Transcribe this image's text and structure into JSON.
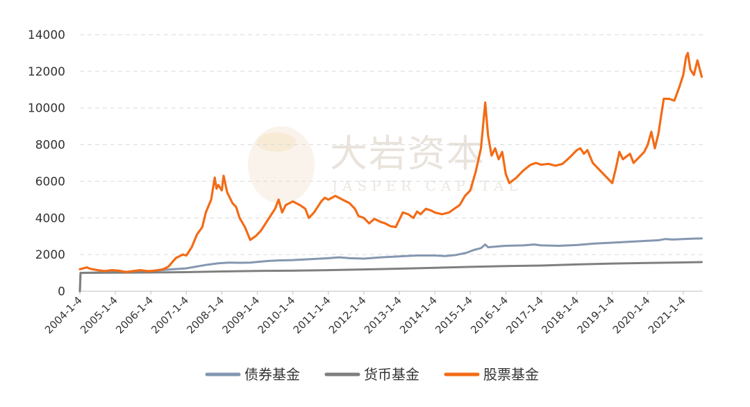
{
  "chart_data": {
    "type": "line",
    "title": "",
    "xlabel": "",
    "ylabel": "",
    "ylim": [
      0,
      14000
    ],
    "yticks": [
      0,
      2000,
      4000,
      6000,
      8000,
      10000,
      12000,
      14000
    ],
    "xticks": [
      "2004-1-4",
      "2005-1-4",
      "2006-1-4",
      "2007-1-4",
      "2008-1-4",
      "2009-1-4",
      "2010-1-4",
      "2011-1-4",
      "2012-1-4",
      "2013-1-4",
      "2014-1-4",
      "2015-1-4",
      "2016-1-4",
      "2017-1-4",
      "2018-1-4",
      "2019-1-4",
      "2020-1-4",
      "2021-1-4"
    ],
    "x_range": [
      2004.0,
      2021.55
    ],
    "grid": "horizontal dashed",
    "legend": "bottom",
    "watermark": {
      "cn": "大岩资本",
      "en": "JASPER CAPITAL"
    },
    "series": [
      {
        "name": "债券基金",
        "color": "#8497b0",
        "points": [
          [
            2004.0,
            0
          ],
          [
            2004.02,
            1000
          ],
          [
            2004.5,
            1020
          ],
          [
            2005.0,
            1050
          ],
          [
            2005.5,
            1070
          ],
          [
            2006.0,
            1100
          ],
          [
            2006.5,
            1180
          ],
          [
            2007.0,
            1250
          ],
          [
            2007.3,
            1350
          ],
          [
            2007.6,
            1450
          ],
          [
            2007.9,
            1520
          ],
          [
            2008.2,
            1560
          ],
          [
            2008.5,
            1550
          ],
          [
            2008.8,
            1560
          ],
          [
            2009.0,
            1600
          ],
          [
            2009.3,
            1650
          ],
          [
            2009.6,
            1680
          ],
          [
            2010.0,
            1700
          ],
          [
            2010.5,
            1750
          ],
          [
            2011.0,
            1800
          ],
          [
            2011.3,
            1850
          ],
          [
            2011.6,
            1800
          ],
          [
            2012.0,
            1780
          ],
          [
            2012.5,
            1850
          ],
          [
            2013.0,
            1900
          ],
          [
            2013.5,
            1950
          ],
          [
            2014.0,
            1950
          ],
          [
            2014.3,
            1920
          ],
          [
            2014.6,
            1980
          ],
          [
            2014.9,
            2100
          ],
          [
            2015.1,
            2250
          ],
          [
            2015.3,
            2350
          ],
          [
            2015.42,
            2550
          ],
          [
            2015.5,
            2400
          ],
          [
            2015.8,
            2450
          ],
          [
            2016.0,
            2480
          ],
          [
            2016.5,
            2500
          ],
          [
            2016.8,
            2550
          ],
          [
            2017.0,
            2500
          ],
          [
            2017.5,
            2480
          ],
          [
            2018.0,
            2520
          ],
          [
            2018.5,
            2600
          ],
          [
            2019.0,
            2650
          ],
          [
            2019.5,
            2700
          ],
          [
            2020.0,
            2750
          ],
          [
            2020.3,
            2780
          ],
          [
            2020.5,
            2850
          ],
          [
            2020.7,
            2820
          ],
          [
            2021.0,
            2850
          ],
          [
            2021.3,
            2870
          ],
          [
            2021.52,
            2880
          ]
        ]
      },
      {
        "name": "货币基金",
        "color": "#7f7f7f",
        "points": [
          [
            2004.0,
            0
          ],
          [
            2004.02,
            1000
          ],
          [
            2005.0,
            1010
          ],
          [
            2006.0,
            1020
          ],
          [
            2007.0,
            1040
          ],
          [
            2008.0,
            1080
          ],
          [
            2009.0,
            1110
          ],
          [
            2010.0,
            1120
          ],
          [
            2011.0,
            1150
          ],
          [
            2012.0,
            1190
          ],
          [
            2013.0,
            1230
          ],
          [
            2014.0,
            1280
          ],
          [
            2015.0,
            1330
          ],
          [
            2016.0,
            1370
          ],
          [
            2017.0,
            1400
          ],
          [
            2018.0,
            1460
          ],
          [
            2019.0,
            1510
          ],
          [
            2020.0,
            1540
          ],
          [
            2021.0,
            1570
          ],
          [
            2021.52,
            1590
          ]
        ]
      },
      {
        "name": "股票基金",
        "color": "#f36b16",
        "points": [
          [
            2004.0,
            1200
          ],
          [
            2004.1,
            1250
          ],
          [
            2004.2,
            1300
          ],
          [
            2004.3,
            1220
          ],
          [
            2004.5,
            1150
          ],
          [
            2004.7,
            1100
          ],
          [
            2004.9,
            1150
          ],
          [
            2005.1,
            1120
          ],
          [
            2005.3,
            1050
          ],
          [
            2005.5,
            1100
          ],
          [
            2005.7,
            1150
          ],
          [
            2005.9,
            1100
          ],
          [
            2006.0,
            1100
          ],
          [
            2006.2,
            1150
          ],
          [
            2006.35,
            1200
          ],
          [
            2006.5,
            1350
          ],
          [
            2006.7,
            1800
          ],
          [
            2006.9,
            2000
          ],
          [
            2007.0,
            1950
          ],
          [
            2007.15,
            2400
          ],
          [
            2007.3,
            3100
          ],
          [
            2007.45,
            3500
          ],
          [
            2007.55,
            4300
          ],
          [
            2007.7,
            5000
          ],
          [
            2007.8,
            6200
          ],
          [
            2007.85,
            5600
          ],
          [
            2007.9,
            5800
          ],
          [
            2008.0,
            5500
          ],
          [
            2008.05,
            6300
          ],
          [
            2008.15,
            5400
          ],
          [
            2008.3,
            4800
          ],
          [
            2008.4,
            4600
          ],
          [
            2008.5,
            4000
          ],
          [
            2008.65,
            3500
          ],
          [
            2008.8,
            2800
          ],
          [
            2008.95,
            3000
          ],
          [
            2009.1,
            3300
          ],
          [
            2009.3,
            3900
          ],
          [
            2009.5,
            4500
          ],
          [
            2009.6,
            5000
          ],
          [
            2009.7,
            4300
          ],
          [
            2009.8,
            4700
          ],
          [
            2010.0,
            4900
          ],
          [
            2010.2,
            4700
          ],
          [
            2010.35,
            4500
          ],
          [
            2010.45,
            4000
          ],
          [
            2010.6,
            4300
          ],
          [
            2010.8,
            4900
          ],
          [
            2010.9,
            5100
          ],
          [
            2011.0,
            5000
          ],
          [
            2011.2,
            5200
          ],
          [
            2011.4,
            5000
          ],
          [
            2011.6,
            4800
          ],
          [
            2011.75,
            4500
          ],
          [
            2011.85,
            4100
          ],
          [
            2012.0,
            4000
          ],
          [
            2012.15,
            3700
          ],
          [
            2012.3,
            3950
          ],
          [
            2012.45,
            3800
          ],
          [
            2012.6,
            3700
          ],
          [
            2012.75,
            3550
          ],
          [
            2012.9,
            3500
          ],
          [
            2013.0,
            3900
          ],
          [
            2013.1,
            4300
          ],
          [
            2013.25,
            4200
          ],
          [
            2013.4,
            4000
          ],
          [
            2013.5,
            4350
          ],
          [
            2013.6,
            4200
          ],
          [
            2013.75,
            4500
          ],
          [
            2013.9,
            4400
          ],
          [
            2014.0,
            4300
          ],
          [
            2014.2,
            4200
          ],
          [
            2014.4,
            4300
          ],
          [
            2014.55,
            4500
          ],
          [
            2014.7,
            4700
          ],
          [
            2014.85,
            5200
          ],
          [
            2015.0,
            5500
          ],
          [
            2015.15,
            6500
          ],
          [
            2015.3,
            7800
          ],
          [
            2015.42,
            10300
          ],
          [
            2015.5,
            8500
          ],
          [
            2015.6,
            7400
          ],
          [
            2015.7,
            7800
          ],
          [
            2015.8,
            7200
          ],
          [
            2015.9,
            7600
          ],
          [
            2016.0,
            6400
          ],
          [
            2016.1,
            5900
          ],
          [
            2016.3,
            6200
          ],
          [
            2016.5,
            6600
          ],
          [
            2016.7,
            6900
          ],
          [
            2016.85,
            7000
          ],
          [
            2017.0,
            6900
          ],
          [
            2017.2,
            6950
          ],
          [
            2017.4,
            6850
          ],
          [
            2017.6,
            6950
          ],
          [
            2017.8,
            7300
          ],
          [
            2018.0,
            7700
          ],
          [
            2018.1,
            7800
          ],
          [
            2018.2,
            7500
          ],
          [
            2018.3,
            7700
          ],
          [
            2018.45,
            7000
          ],
          [
            2018.6,
            6700
          ],
          [
            2018.8,
            6300
          ],
          [
            2019.0,
            5900
          ],
          [
            2019.1,
            6700
          ],
          [
            2019.2,
            7600
          ],
          [
            2019.3,
            7200
          ],
          [
            2019.5,
            7500
          ],
          [
            2019.6,
            7000
          ],
          [
            2019.75,
            7300
          ],
          [
            2019.9,
            7600
          ],
          [
            2020.0,
            8000
          ],
          [
            2020.1,
            8700
          ],
          [
            2020.2,
            7800
          ],
          [
            2020.3,
            8600
          ],
          [
            2020.45,
            10500
          ],
          [
            2020.6,
            10500
          ],
          [
            2020.75,
            10400
          ],
          [
            2020.9,
            11200
          ],
          [
            2021.0,
            11800
          ],
          [
            2021.08,
            12800
          ],
          [
            2021.13,
            13000
          ],
          [
            2021.2,
            12100
          ],
          [
            2021.3,
            11800
          ],
          [
            2021.4,
            12600
          ],
          [
            2021.52,
            11700
          ]
        ]
      }
    ]
  }
}
